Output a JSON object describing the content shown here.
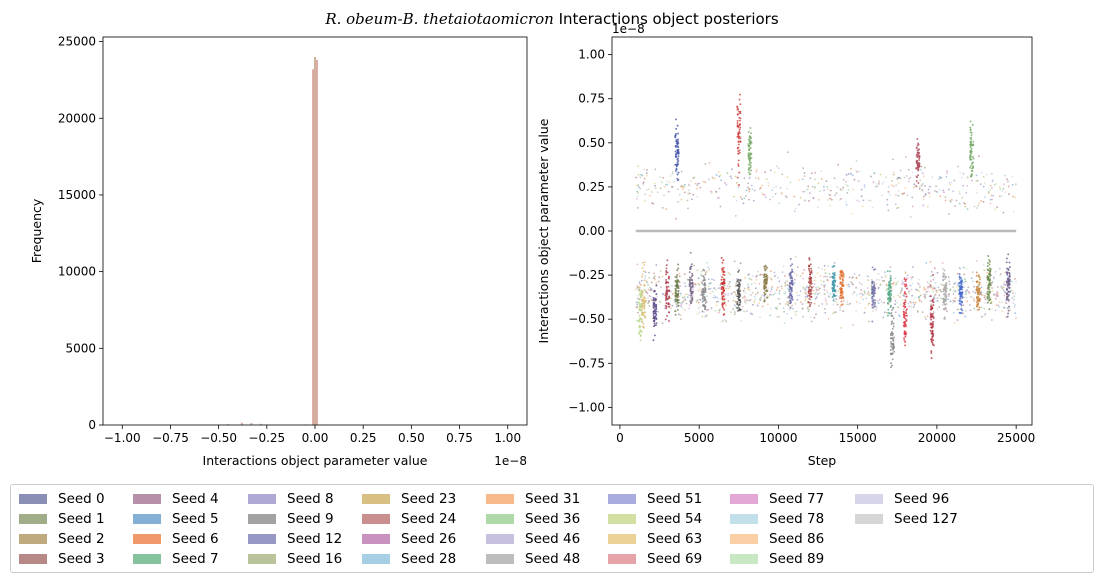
{
  "title_prefix": "R. obeum-B. thetaiotaomicron",
  "title_suffix": " Interactions object posteriors",
  "chart_data": [
    {
      "type": "histogram",
      "title": "",
      "xlabel": "Interactions object parameter value",
      "ylabel": "Frequency",
      "x_multiplier_label": "1e−8",
      "xlim": [
        -1.1,
        1.1
      ],
      "ylim": [
        0,
        25300
      ],
      "x_ticks": [
        "−1.00",
        "−0.75",
        "−0.50",
        "−0.25",
        "0.00",
        "0.25",
        "0.50",
        "0.75",
        "1.00"
      ],
      "x_tick_values": [
        -1.0,
        -0.75,
        -0.5,
        -0.25,
        0.0,
        0.25,
        0.5,
        0.75,
        1.0
      ],
      "y_ticks": [
        "0",
        "5000",
        "10000",
        "15000",
        "20000",
        "25000"
      ],
      "y_tick_values": [
        0,
        5000,
        10000,
        15000,
        20000,
        25000
      ],
      "bins": [
        {
          "x": -0.01,
          "value": 23200
        },
        {
          "x": 0.0,
          "value": 24000
        },
        {
          "x": 0.01,
          "value": 23800
        },
        {
          "x": -0.45,
          "value": 60
        },
        {
          "x": -0.38,
          "value": 150
        },
        {
          "x": -0.33,
          "value": 130
        },
        {
          "x": -0.28,
          "value": 80
        },
        {
          "x": -0.05,
          "value": 40
        },
        {
          "x": 0.06,
          "value": 30
        }
      ]
    },
    {
      "type": "scatter",
      "title": "",
      "xlabel": "Step",
      "ylabel": "Interactions object parameter value",
      "y_multiplier_label": "1e−8",
      "xlim": [
        -500,
        26000
      ],
      "ylim": [
        -1.1,
        1.1
      ],
      "x_ticks": [
        "0",
        "5000",
        "10000",
        "15000",
        "20000",
        "25000"
      ],
      "x_tick_values": [
        0,
        5000,
        10000,
        15000,
        20000,
        25000
      ],
      "y_ticks": [
        "−1.00",
        "−0.75",
        "−0.50",
        "−0.25",
        "0.00",
        "0.25",
        "0.50",
        "0.75",
        "1.00"
      ],
      "y_tick_values": [
        -1.0,
        -0.75,
        -0.5,
        -0.25,
        0.0,
        0.25,
        0.5,
        0.75,
        1.0
      ],
      "step_range": [
        1000,
        25000
      ],
      "clusters": [
        {
          "step": 1300,
          "center": -0.45,
          "spread": 0.18,
          "color": "#bcd68a"
        },
        {
          "step": 1500,
          "center": -0.4,
          "spread": 0.2,
          "color": "#dcc27a"
        },
        {
          "step": 2200,
          "center": -0.45,
          "spread": 0.15,
          "color": "#5c4a8a"
        },
        {
          "step": 3000,
          "center": -0.35,
          "spread": 0.15,
          "color": "#b04050"
        },
        {
          "step": 3600,
          "center": 0.45,
          "spread": 0.15,
          "color": "#4455aa"
        },
        {
          "step": 3600,
          "center": -0.35,
          "spread": 0.12,
          "color": "#6a7a4a"
        },
        {
          "step": 4500,
          "center": -0.3,
          "spread": 0.12,
          "color": "#7a6a88"
        },
        {
          "step": 5300,
          "center": -0.35,
          "spread": 0.12,
          "color": "#888888"
        },
        {
          "step": 6500,
          "center": -0.3,
          "spread": 0.15,
          "color": "#cc3333"
        },
        {
          "step": 7500,
          "center": 0.55,
          "spread": 0.22,
          "color": "#cc4444"
        },
        {
          "step": 8200,
          "center": 0.45,
          "spread": 0.12,
          "color": "#77aa66"
        },
        {
          "step": 7500,
          "center": -0.35,
          "spread": 0.12,
          "color": "#555555"
        },
        {
          "step": 9200,
          "center": -0.3,
          "spread": 0.12,
          "color": "#8a7a4a"
        },
        {
          "step": 10800,
          "center": -0.3,
          "spread": 0.12,
          "color": "#6a6aaa"
        },
        {
          "step": 12000,
          "center": -0.3,
          "spread": 0.12,
          "color": "#aa4444"
        },
        {
          "step": 13500,
          "center": -0.3,
          "spread": 0.1,
          "color": "#4499aa"
        },
        {
          "step": 14000,
          "center": -0.3,
          "spread": 0.12,
          "color": "#e07030"
        },
        {
          "step": 16000,
          "center": -0.35,
          "spread": 0.12,
          "color": "#7777aa"
        },
        {
          "step": 17000,
          "center": -0.35,
          "spread": 0.12,
          "color": "#55aa88"
        },
        {
          "step": 17200,
          "center": -0.6,
          "spread": 0.15,
          "color": "#888888"
        },
        {
          "step": 18000,
          "center": -0.45,
          "spread": 0.2,
          "color": "#dd3344"
        },
        {
          "step": 18800,
          "center": 0.4,
          "spread": 0.12,
          "color": "#b05060"
        },
        {
          "step": 19700,
          "center": -0.55,
          "spread": 0.2,
          "color": "#b03040"
        },
        {
          "step": 20500,
          "center": -0.35,
          "spread": 0.12,
          "color": "#aaaaaa"
        },
        {
          "step": 21500,
          "center": -0.35,
          "spread": 0.12,
          "color": "#4466cc"
        },
        {
          "step": 22200,
          "center": 0.45,
          "spread": 0.15,
          "color": "#77aa66"
        },
        {
          "step": 22600,
          "center": -0.35,
          "spread": 0.12,
          "color": "#cc8844"
        },
        {
          "step": 23300,
          "center": -0.3,
          "spread": 0.15,
          "color": "#6a8a4a"
        },
        {
          "step": 24500,
          "center": -0.3,
          "spread": 0.15,
          "color": "#6a5a8a"
        }
      ],
      "zero_line_color": "#bbbbbb"
    }
  ],
  "legend": {
    "items": [
      {
        "label": "Seed 0",
        "color": "#8b8fb5"
      },
      {
        "label": "Seed 1",
        "color": "#a0ad88"
      },
      {
        "label": "Seed 2",
        "color": "#bfaa80"
      },
      {
        "label": "Seed 3",
        "color": "#b68886"
      },
      {
        "label": "Seed 4",
        "color": "#b590a8"
      },
      {
        "label": "Seed 5",
        "color": "#84b0d6"
      },
      {
        "label": "Seed 6",
        "color": "#f0996b"
      },
      {
        "label": "Seed 7",
        "color": "#85c39f"
      },
      {
        "label": "Seed 8",
        "color": "#ada8d4"
      },
      {
        "label": "Seed 9",
        "color": "#a3a3a3"
      },
      {
        "label": "Seed 12",
        "color": "#9898c4"
      },
      {
        "label": "Seed 16",
        "color": "#bac49a"
      },
      {
        "label": "Seed 23",
        "color": "#d8bf82"
      },
      {
        "label": "Seed 24",
        "color": "#c98f8f"
      },
      {
        "label": "Seed 26",
        "color": "#c891c0"
      },
      {
        "label": "Seed 28",
        "color": "#a6cfe6"
      },
      {
        "label": "Seed 31",
        "color": "#f8b98b"
      },
      {
        "label": "Seed 36",
        "color": "#afd9a8"
      },
      {
        "label": "Seed 46",
        "color": "#c7c0df"
      },
      {
        "label": "Seed 48",
        "color": "#bdbdbd"
      },
      {
        "label": "Seed 51",
        "color": "#a9acdf"
      },
      {
        "label": "Seed 54",
        "color": "#d3e0a3"
      },
      {
        "label": "Seed 63",
        "color": "#ecd196"
      },
      {
        "label": "Seed 69",
        "color": "#e6a3a8"
      },
      {
        "label": "Seed 77",
        "color": "#e3a8d6"
      },
      {
        "label": "Seed 78",
        "color": "#c3dfea"
      },
      {
        "label": "Seed 86",
        "color": "#fbcfa6"
      },
      {
        "label": "Seed 89",
        "color": "#c8e8c3"
      },
      {
        "label": "Seed 96",
        "color": "#d6d5ea"
      },
      {
        "label": "Seed 127",
        "color": "#d6d6d6"
      }
    ]
  }
}
